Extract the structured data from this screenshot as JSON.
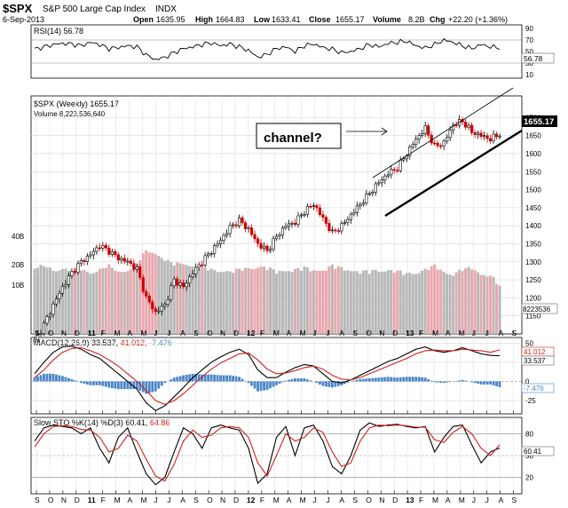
{
  "header": {
    "symbol": "$SPX",
    "name": "S&P 500 Large Cap Index",
    "exchange": "INDX",
    "date": "6-Sep-2013",
    "open_label": "Open",
    "open": "1635.95",
    "high_label": "High",
    "high": "1664.83",
    "low_label": "Low",
    "low": "1633.41",
    "close_label": "Close",
    "close": "1655.17",
    "volume_label": "Volume",
    "volume": "8.2B",
    "chg_label": "Chg",
    "chg": "+22.20 (+1.36%)"
  },
  "colors": {
    "up": "#000000",
    "down": "#cc0000",
    "vol_up": "#b8b8b8",
    "vol_down": "#e8a8ae",
    "grid": "#d8d8d8",
    "macd_signal": "#d02020",
    "histogram": "#4a86c8",
    "price_badge": "#000000"
  },
  "chart_data": [
    {
      "type": "line",
      "panel": "rsi",
      "legend": "RSI(14) 56.78",
      "last_label": "56.78",
      "y_ticks": [
        "90",
        "70",
        "50",
        "30",
        "10"
      ],
      "ylim": [
        10,
        90
      ],
      "levels": [
        70,
        30
      ],
      "x_weeks": [
        0,
        3,
        6,
        9,
        12,
        15,
        18,
        21,
        24,
        27,
        30,
        33,
        36,
        39,
        42,
        45,
        48,
        51,
        54,
        57,
        60,
        63,
        66,
        69,
        72,
        75,
        78,
        81,
        84,
        87,
        90,
        93,
        96,
        99,
        102,
        105,
        108,
        111,
        114,
        117,
        120,
        123,
        126,
        129,
        132,
        135,
        138,
        141,
        144,
        147,
        150
      ],
      "values": [
        54,
        58,
        62,
        64,
        63,
        60,
        66,
        62,
        55,
        57,
        60,
        58,
        44,
        36,
        40,
        48,
        55,
        58,
        62,
        65,
        60,
        63,
        58,
        52,
        40,
        45,
        55,
        58,
        50,
        60,
        63,
        57,
        54,
        48,
        50,
        55,
        62,
        58,
        64,
        66,
        68,
        60,
        56,
        62,
        70,
        66,
        60,
        55,
        62,
        58,
        56.78
      ]
    },
    {
      "type": "candlestick",
      "panel": "price",
      "legend": "$SPX (Weekly) 1655.17",
      "volume_legend": "Volume 8,223,536,640",
      "last_label": "1655.17",
      "annotation": "channel?",
      "y_ticks": [
        "1700",
        "1650",
        "1600",
        "1550",
        "1500",
        "1450",
        "1400",
        "1350",
        "1300",
        "1250",
        "1200",
        "1150"
      ],
      "ylim": [
        1100,
        1760
      ],
      "x_weeks": [
        0,
        3,
        6,
        9,
        12,
        15,
        18,
        21,
        24,
        27,
        30,
        33,
        36,
        39,
        42,
        45,
        48,
        51,
        54,
        57,
        60,
        63,
        66,
        69,
        72,
        75,
        78,
        81,
        84,
        87,
        90,
        93,
        96,
        99,
        102,
        105,
        108,
        111,
        114,
        117,
        120,
        123,
        126,
        129,
        132,
        135,
        138,
        141,
        144,
        147,
        150
      ],
      "closes": [
        1080,
        1125,
        1180,
        1230,
        1270,
        1300,
        1320,
        1345,
        1330,
        1310,
        1300,
        1280,
        1200,
        1160,
        1180,
        1250,
        1230,
        1270,
        1300,
        1330,
        1360,
        1395,
        1415,
        1390,
        1350,
        1330,
        1370,
        1400,
        1410,
        1440,
        1460,
        1420,
        1380,
        1400,
        1430,
        1460,
        1490,
        1520,
        1545,
        1560,
        1600,
        1640,
        1670,
        1620,
        1630,
        1680,
        1690,
        1660,
        1650,
        1640,
        1655
      ]
    },
    {
      "type": "bar",
      "panel": "volume",
      "y_ticks": [
        "40B",
        "20B",
        "10B"
      ],
      "last_label": "8223536",
      "x_weeks": [
        0,
        3,
        6,
        9,
        12,
        15,
        18,
        21,
        24,
        27,
        30,
        33,
        36,
        39,
        42,
        45,
        48,
        51,
        54,
        57,
        60,
        63,
        66,
        69,
        72,
        75,
        78,
        81,
        84,
        87,
        90,
        93,
        96,
        99,
        102,
        105,
        108,
        111,
        114,
        117,
        120,
        123,
        126,
        129,
        132,
        135,
        138,
        141,
        144,
        147,
        150
      ],
      "values": [
        17,
        18,
        16,
        17,
        15,
        16,
        15,
        16,
        18,
        15,
        16,
        19,
        28,
        26,
        22,
        19,
        20,
        18,
        17,
        16,
        16,
        15,
        16,
        17,
        18,
        17,
        15,
        16,
        16,
        17,
        16,
        16,
        18,
        17,
        16,
        15,
        15,
        16,
        16,
        15,
        14,
        15,
        16,
        18,
        15,
        14,
        16,
        17,
        14,
        13,
        8.2
      ]
    },
    {
      "type": "line",
      "panel": "macd",
      "legend_prefix": "MACD(12,26,9)",
      "legend_macd": "33.537,",
      "legend_signal": "41.012,",
      "legend_hist": "-7.476",
      "last_signal_label": "41.012",
      "last_macd_label": "33.537",
      "last_hist_label": "-7.476",
      "y_ticks": [
        "50",
        "25",
        "0",
        "-25"
      ],
      "ylim": [
        -40,
        55
      ],
      "x_weeks": [
        0,
        3,
        6,
        9,
        12,
        15,
        18,
        21,
        24,
        27,
        30,
        33,
        36,
        39,
        42,
        45,
        48,
        51,
        54,
        57,
        60,
        63,
        66,
        69,
        72,
        75,
        78,
        81,
        84,
        87,
        90,
        93,
        96,
        99,
        102,
        105,
        108,
        111,
        114,
        117,
        120,
        123,
        126,
        129,
        132,
        135,
        138,
        141,
        144,
        147,
        150
      ],
      "series": [
        {
          "name": "MACD",
          "values": [
            10,
            25,
            38,
            45,
            46,
            42,
            35,
            30,
            20,
            10,
            0,
            -10,
            -28,
            -38,
            -32,
            -20,
            -8,
            5,
            15,
            25,
            32,
            38,
            42,
            35,
            15,
            5,
            5,
            12,
            18,
            22,
            20,
            10,
            0,
            -2,
            2,
            8,
            14,
            20,
            26,
            30,
            36,
            42,
            45,
            40,
            38,
            40,
            44,
            40,
            36,
            34,
            33.537
          ]
        },
        {
          "name": "Signal",
          "values": [
            5,
            15,
            28,
            38,
            43,
            44,
            40,
            35,
            28,
            20,
            10,
            0,
            -12,
            -25,
            -30,
            -25,
            -16,
            -5,
            6,
            16,
            24,
            30,
            36,
            37,
            28,
            16,
            10,
            11,
            14,
            18,
            20,
            16,
            8,
            3,
            2,
            5,
            10,
            15,
            20,
            25,
            30,
            36,
            40,
            41,
            40,
            40,
            42,
            41,
            40,
            38,
            41.012
          ]
        }
      ],
      "histogram": [
        5,
        10,
        10,
        7,
        3,
        -2,
        -5,
        -5,
        -8,
        -10,
        -10,
        -10,
        -16,
        -13,
        -2,
        5,
        8,
        10,
        9,
        9,
        8,
        8,
        6,
        -2,
        -13,
        -11,
        -5,
        1,
        4,
        4,
        0,
        -6,
        -8,
        -5,
        0,
        3,
        4,
        5,
        6,
        5,
        6,
        6,
        5,
        -1,
        -2,
        0,
        2,
        -1,
        -4,
        -4,
        -7.476
      ]
    },
    {
      "type": "line",
      "panel": "stochastic",
      "legend_prefix": "Slow STO %K(14) %D(3)",
      "legend_k": "60.41,",
      "legend_d": "64.86",
      "last_label": "60.41",
      "y_ticks": [
        "80",
        "50",
        "20"
      ],
      "ylim": [
        0,
        100
      ],
      "x_weeks": [
        0,
        3,
        6,
        9,
        12,
        15,
        18,
        21,
        24,
        27,
        30,
        33,
        36,
        39,
        42,
        45,
        48,
        51,
        54,
        57,
        60,
        63,
        66,
        69,
        72,
        75,
        78,
        81,
        84,
        87,
        90,
        93,
        96,
        99,
        102,
        105,
        108,
        111,
        114,
        117,
        120,
        123,
        126,
        129,
        132,
        135,
        138,
        141,
        144,
        147,
        150
      ],
      "series": [
        {
          "name": "%K",
          "values": [
            70,
            88,
            92,
            90,
            88,
            80,
            88,
            60,
            40,
            75,
            88,
            55,
            25,
            10,
            20,
            55,
            88,
            80,
            60,
            88,
            92,
            88,
            85,
            60,
            12,
            25,
            75,
            90,
            50,
            88,
            92,
            70,
            35,
            25,
            50,
            85,
            95,
            90,
            92,
            93,
            90,
            88,
            90,
            55,
            75,
            90,
            92,
            65,
            40,
            55,
            60.41
          ]
        },
        {
          "name": "%D",
          "values": [
            62,
            80,
            90,
            91,
            90,
            86,
            85,
            75,
            55,
            60,
            78,
            70,
            45,
            22,
            15,
            38,
            70,
            85,
            75,
            78,
            88,
            90,
            88,
            75,
            40,
            22,
            50,
            80,
            70,
            75,
            88,
            82,
            55,
            35,
            40,
            70,
            88,
            92,
            91,
            92,
            91,
            89,
            89,
            72,
            68,
            82,
            90,
            80,
            60,
            50,
            64.86
          ]
        }
      ]
    }
  ],
  "x_axis": {
    "labels": [
      "S",
      "O",
      "N",
      "D",
      "11",
      "F",
      "M",
      "A",
      "M",
      "J",
      "J",
      "A",
      "S",
      "O",
      "N",
      "D",
      "12",
      "F",
      "M",
      "A",
      "M",
      "J",
      "J",
      "A",
      "S",
      "O",
      "N",
      "D",
      "13",
      "F",
      "M",
      "A",
      "M",
      "J",
      "J",
      "A",
      "S"
    ],
    "bold_labels": [
      "11",
      "12",
      "13"
    ]
  }
}
